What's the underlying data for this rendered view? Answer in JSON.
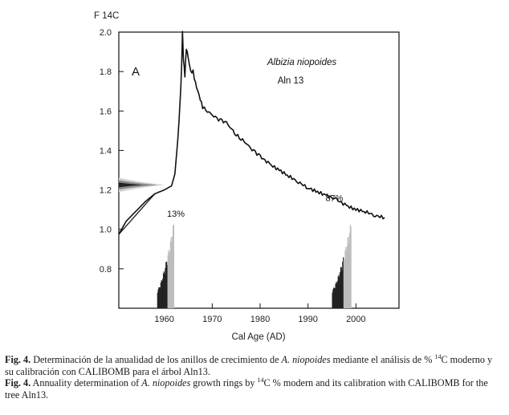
{
  "chart_data": {
    "type": "line",
    "ylabel": "F 14C",
    "xlabel": "Cal Age (AD)",
    "panel_label": "A",
    "species": "Albizia niopoides",
    "tree": "Aln 13",
    "x_ticks": [
      "1960",
      "1970",
      "1980",
      "1990",
      "2000"
    ],
    "y_ticks": [
      "0.8",
      "1.0",
      "1.2",
      "1.4",
      "1.6",
      "1.8",
      "2.0"
    ],
    "xlim": [
      1950.5,
      2009
    ],
    "ylim": [
      0.6,
      2.0
    ],
    "grid": false,
    "series": [
      {
        "x": [
          1950.5,
          1952,
          1954,
          1956,
          1958,
          1960,
          1961.5,
          1962.2,
          1962.8,
          1963.3,
          1963.6,
          1963.8,
          1964.0,
          1964.3,
          1964.6,
          1965.0,
          1965.5,
          1966.0,
          1966.5,
          1967.0,
          1967.5,
          1968.0,
          1969.0,
          1970.0,
          1971.0,
          1972.0,
          1973.0,
          1974.0,
          1975.0,
          1976.0,
          1977.0,
          1978.0,
          1979.0,
          1980.0,
          1982.0,
          1984.0,
          1986.0,
          1988.0,
          1990.0,
          1992.0,
          1994.0,
          1996.0,
          1998.0,
          2000.0,
          2002.0,
          2004.0,
          2006.0
        ],
        "y": [
          0.975,
          1.04,
          1.09,
          1.14,
          1.18,
          1.2,
          1.22,
          1.28,
          1.45,
          1.65,
          1.82,
          2.0,
          1.86,
          1.78,
          1.92,
          1.87,
          1.8,
          1.8,
          1.74,
          1.7,
          1.66,
          1.62,
          1.6,
          1.58,
          1.56,
          1.55,
          1.54,
          1.51,
          1.48,
          1.46,
          1.44,
          1.41,
          1.39,
          1.37,
          1.33,
          1.3,
          1.27,
          1.24,
          1.21,
          1.19,
          1.17,
          1.15,
          1.12,
          1.1,
          1.09,
          1.07,
          1.06
        ]
      }
    ],
    "annotations": [
      {
        "text": "13%",
        "x": 1962.4,
        "y": 1.08
      },
      {
        "text": "87%",
        "x": 1995.5,
        "y": 1.16
      }
    ],
    "probability_ranges": [
      {
        "label": "13%",
        "x_from": 1958.5,
        "x_to": 1962.0
      },
      {
        "label": "87%",
        "x_from": 1995.0,
        "x_to": 1999.0
      }
    ],
    "calibration_input": {
      "value": 1.225
    }
  },
  "captions": {
    "es": {
      "fig": "Fig. 4.",
      "pre": " Determinación de la anualidad de los anillos de crecimiento de ",
      "species": "A. niopoides",
      "mid": " mediante el análisis de % ",
      "sup": "14",
      "post": "C moderno y su calibración con CALIBOMB para el árbol Aln13."
    },
    "en": {
      "fig": "Fig. 4.",
      "pre": " Annuality determination of ",
      "species": "A. niopoides",
      "mid": " growth rings by ",
      "sup": "14",
      "post": "C % modern and its calibration with CALIBOMB for the tree Aln13."
    }
  }
}
